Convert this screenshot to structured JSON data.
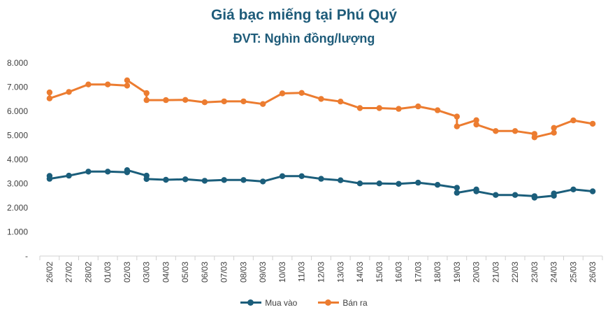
{
  "chart_data": {
    "type": "line",
    "title": "Giá bạc miếng tại Phú Quý",
    "subtitle": "ĐVT: Nghìn đồng/lượng",
    "y_ticks": [
      "-",
      "1.000",
      "2.000",
      "3.000",
      "4.000",
      "5.000",
      "6.000",
      "7.000",
      "8.000"
    ],
    "ylim": [
      0,
      8000
    ],
    "grid": false,
    "legend_position": "bottom",
    "x_labels": [
      "26/02",
      "27/02",
      "28/02",
      "01/03",
      "02/03",
      "03/03",
      "04/03",
      "05/03",
      "06/03",
      "07/03",
      "08/03",
      "09/03",
      "10/03",
      "11/03",
      "12/03",
      "13/03",
      "14/03",
      "15/03",
      "16/03",
      "17/03",
      "18/03",
      "19/03",
      "20/03",
      "21/03",
      "22/03",
      "23/03",
      "24/03",
      "25/03",
      "26/03"
    ],
    "series": [
      {
        "name": "Mua vào",
        "color": "#1b5e7b",
        "points": [
          {
            "x": 0,
            "y": 3320
          },
          {
            "x": 0,
            "y": 3200
          },
          {
            "x": 1,
            "y": 3330
          },
          {
            "x": 2,
            "y": 3500
          },
          {
            "x": 3,
            "y": 3500
          },
          {
            "x": 4,
            "y": 3470
          },
          {
            "x": 4,
            "y": 3560
          },
          {
            "x": 5,
            "y": 3330
          },
          {
            "x": 5,
            "y": 3190
          },
          {
            "x": 6,
            "y": 3160
          },
          {
            "x": 7,
            "y": 3180
          },
          {
            "x": 8,
            "y": 3120
          },
          {
            "x": 9,
            "y": 3150
          },
          {
            "x": 10,
            "y": 3150
          },
          {
            "x": 11,
            "y": 3090
          },
          {
            "x": 12,
            "y": 3310
          },
          {
            "x": 13,
            "y": 3310
          },
          {
            "x": 14,
            "y": 3200
          },
          {
            "x": 15,
            "y": 3140
          },
          {
            "x": 16,
            "y": 3010
          },
          {
            "x": 17,
            "y": 3010
          },
          {
            "x": 18,
            "y": 2990
          },
          {
            "x": 19,
            "y": 3040
          },
          {
            "x": 20,
            "y": 2950
          },
          {
            "x": 21,
            "y": 2830
          },
          {
            "x": 21,
            "y": 2620
          },
          {
            "x": 22,
            "y": 2760
          },
          {
            "x": 22,
            "y": 2680
          },
          {
            "x": 23,
            "y": 2530
          },
          {
            "x": 24,
            "y": 2530
          },
          {
            "x": 25,
            "y": 2480
          },
          {
            "x": 25,
            "y": 2420
          },
          {
            "x": 26,
            "y": 2500
          },
          {
            "x": 26,
            "y": 2590
          },
          {
            "x": 27,
            "y": 2760
          },
          {
            "x": 28,
            "y": 2680
          }
        ]
      },
      {
        "name": "Bán ra",
        "color": "#ec7c30",
        "points": [
          {
            "x": 0,
            "y": 6780
          },
          {
            "x": 0,
            "y": 6530
          },
          {
            "x": 1,
            "y": 6800
          },
          {
            "x": 2,
            "y": 7110
          },
          {
            "x": 3,
            "y": 7110
          },
          {
            "x": 4,
            "y": 7060
          },
          {
            "x": 4,
            "y": 7280
          },
          {
            "x": 5,
            "y": 6750
          },
          {
            "x": 5,
            "y": 6460
          },
          {
            "x": 6,
            "y": 6460
          },
          {
            "x": 7,
            "y": 6470
          },
          {
            "x": 8,
            "y": 6370
          },
          {
            "x": 9,
            "y": 6410
          },
          {
            "x": 10,
            "y": 6410
          },
          {
            "x": 11,
            "y": 6300
          },
          {
            "x": 12,
            "y": 6740
          },
          {
            "x": 13,
            "y": 6760
          },
          {
            "x": 14,
            "y": 6510
          },
          {
            "x": 15,
            "y": 6400
          },
          {
            "x": 16,
            "y": 6130
          },
          {
            "x": 17,
            "y": 6130
          },
          {
            "x": 18,
            "y": 6100
          },
          {
            "x": 19,
            "y": 6200
          },
          {
            "x": 20,
            "y": 6040
          },
          {
            "x": 21,
            "y": 5780
          },
          {
            "x": 21,
            "y": 5370
          },
          {
            "x": 22,
            "y": 5630
          },
          {
            "x": 22,
            "y": 5450
          },
          {
            "x": 23,
            "y": 5180
          },
          {
            "x": 24,
            "y": 5180
          },
          {
            "x": 25,
            "y": 5060
          },
          {
            "x": 25,
            "y": 4920
          },
          {
            "x": 26,
            "y": 5110
          },
          {
            "x": 26,
            "y": 5310
          },
          {
            "x": 27,
            "y": 5620
          },
          {
            "x": 28,
            "y": 5480
          }
        ]
      }
    ]
  }
}
